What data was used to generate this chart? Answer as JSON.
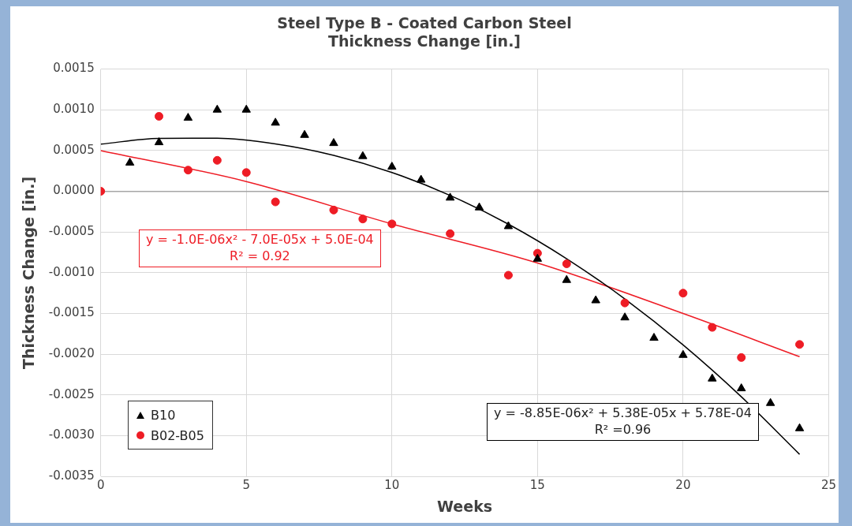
{
  "chart_data": {
    "type": "scatter",
    "title": "Steel Type B - Coated Carbon Steel",
    "subtitle": "Thickness Change [in.]",
    "xlabel": "Weeks",
    "ylabel": "Thickness Change [in.]",
    "xlim": [
      0,
      25
    ],
    "xticks": [
      0,
      5,
      10,
      15,
      20,
      25
    ],
    "ylim": [
      -0.0035,
      0.0015
    ],
    "yticks": [
      0.0015,
      {
        "value": 0.001,
        "label": "0.0010"
      },
      0.0005,
      {
        "value": 0,
        "label": "0.0000"
      },
      -0.0005,
      {
        "value": -0.001,
        "label": "-0.0010"
      },
      -0.0015,
      {
        "value": -0.002,
        "label": "-0.0020"
      },
      -0.0025,
      {
        "value": -0.003,
        "label": "-0.0030"
      },
      -0.0035
    ],
    "grid": true,
    "legend": "bottom left",
    "series": [
      {
        "name": "B10",
        "color": "#000000",
        "marker": "triangle",
        "x": [
          1,
          2,
          3,
          4,
          5,
          6,
          7,
          8,
          9,
          10,
          11,
          12,
          13,
          14,
          15,
          16,
          17,
          18,
          19,
          20,
          21,
          22,
          23,
          24
        ],
        "values": [
          0.00035,
          0.0006,
          0.0009,
          0.001,
          0.001,
          0.00084,
          0.00069,
          0.00059,
          0.00043,
          0.0003,
          0.00014,
          -8e-05,
          -0.0002,
          -0.00043,
          -0.00083,
          -0.00109,
          -0.00134,
          -0.00155,
          -0.0018,
          -0.00201,
          -0.0023,
          -0.00242,
          -0.0026,
          -0.00291
        ]
      },
      {
        "name": "B02-B05",
        "color": "#ee1c25",
        "marker": "circle",
        "x": [
          0,
          2,
          3,
          4,
          5,
          6,
          8,
          9,
          10,
          12,
          14,
          15,
          16,
          18,
          20,
          21,
          22,
          24
        ],
        "values": [
          0,
          0.00092,
          0.00026,
          0.00038,
          0.00023,
          -0.00013,
          -0.00023,
          -0.00034,
          -0.0004,
          -0.00052,
          -0.00103,
          -0.00076,
          -0.00089,
          -0.00137,
          -0.00125,
          -0.00167,
          -0.00204,
          -0.00188
        ]
      },
      {
        "type": "line",
        "color": "#000000",
        "marker": "none",
        "line_style": "solid",
        "x": [
          0,
          2,
          4,
          6,
          8,
          10,
          12,
          14,
          16,
          18,
          20,
          22,
          24
        ],
        "values": [
          0.000578,
          0.00065,
          0.000652,
          0.000582,
          0.000442,
          0.000231,
          -5.1e-05,
          -0.000403,
          -0.000827,
          -0.001321,
          -0.001886,
          -0.002522,
          -0.003228
        ]
      },
      {
        "type": "line",
        "color": "#ee1c25",
        "marker": "none",
        "line_style": "solid",
        "x": [
          0,
          5,
          10,
          15,
          20,
          24
        ],
        "values": [
          0.0005,
          0.00012,
          -0.0004,
          -0.00088,
          -0.0015,
          -0.00203
        ]
      }
    ],
    "annotations": [
      "y = -1.0E-06x² - 7.0E-05x + 5.0E-04\nR² = 0.92",
      "y = -8.85E-06x² + 5.38E-05x + 5.78E-04\nR² =0.96"
    ]
  }
}
